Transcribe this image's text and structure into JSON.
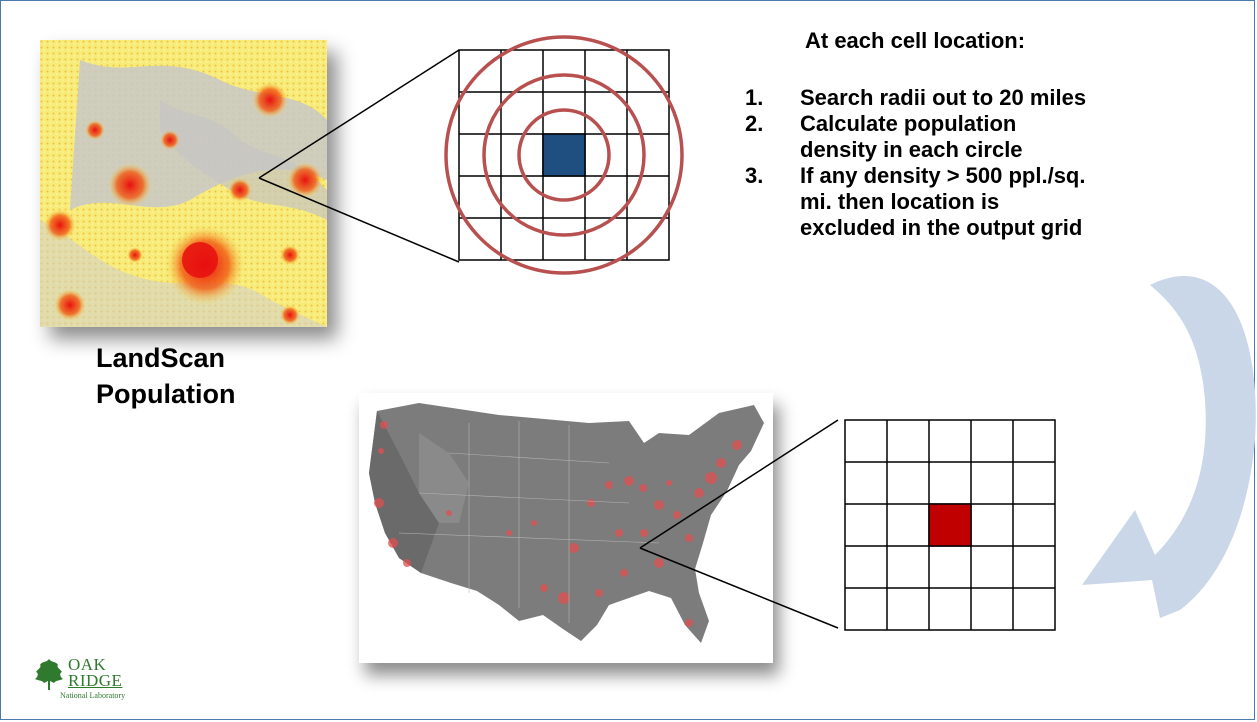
{
  "caption": {
    "line1": "LandScan",
    "line2": "Population"
  },
  "steps": {
    "heading": "At each cell location:",
    "items": [
      {
        "num": "1.",
        "lines": [
          "Search radii out to 20 miles"
        ]
      },
      {
        "num": "2.",
        "lines": [
          "Calculate population",
          "density in each circle"
        ]
      },
      {
        "num": "3.",
        "lines": [
          "If any density > 500 ppl./sq.",
          "mi. then location is",
          "excluded in the output grid"
        ]
      }
    ]
  },
  "colors": {
    "frame": "#4a7ab0",
    "center_cell_input": "#1f4e80",
    "center_cell_output": "#c00000",
    "circles": "#b85050",
    "arrow": "#c9d7e8",
    "logo_green": "#2f7a2f"
  },
  "logo": {
    "line1": "OAK",
    "line2": "RIDGE",
    "sub": "National Laboratory"
  }
}
